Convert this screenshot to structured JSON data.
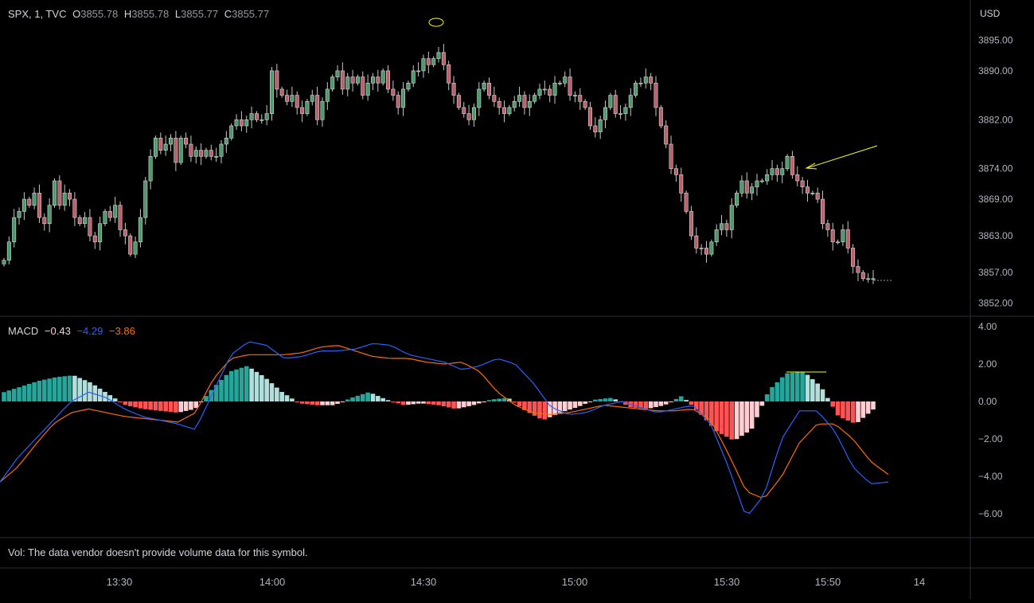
{
  "symbol_line": {
    "title": "SPX, 1, TVC",
    "o_label": "O",
    "o_value": "3855.78",
    "h_label": "H",
    "h_value": "3855.78",
    "l_label": "L",
    "l_value": "3855.77",
    "c_label": "C",
    "c_value": "3855.77"
  },
  "currency": "USD",
  "macd_legend": {
    "name": "MACD",
    "hist": "−0.43",
    "macd": "−4.29",
    "signal": "−3.86"
  },
  "volume_message": "Vol: The data vendor doesn't provide volume data for this symbol.",
  "colors": {
    "background": "#000000",
    "up": "#4c9a6b",
    "down": "#b9606b",
    "macd_line": "#2962ff",
    "signal_line": "#ff6d00",
    "hist_up_strong": "#26a69a",
    "hist_up_weak": "#b2dfdb",
    "hist_down_strong": "#ff5252",
    "hist_down_weak": "#ffcdd2",
    "annotation": "#ffff00"
  },
  "chart_data": [
    {
      "type": "candlestick",
      "price_axis_ticks": [
        "3895.00",
        "3890.00",
        "3882.00",
        "3874.00",
        "3869.00",
        "3863.00",
        "3857.00",
        "3852.00"
      ],
      "time_axis_ticks": [
        "13:30",
        "14:00",
        "14:30",
        "15:00",
        "15:30",
        "15:50",
        "14"
      ],
      "x_start": "13:12",
      "x_end": "15:58",
      "close_series": [
        3859,
        3862,
        3866,
        3867,
        3869,
        3868,
        3870,
        3866,
        3865,
        3868,
        3872,
        3868,
        3870,
        3869,
        3866,
        3865,
        3866,
        3863,
        3862,
        3865,
        3867,
        3866,
        3868,
        3864,
        3863,
        3860,
        3862,
        3866,
        3872,
        3876,
        3879,
        3877,
        3878,
        3879,
        3875,
        3879,
        3878,
        3876,
        3877,
        3876,
        3877,
        3876,
        3876,
        3878,
        3879,
        3881,
        3882,
        3881,
        3882,
        3883,
        3882,
        3882,
        3883,
        3890,
        3887,
        3886,
        3885,
        3886,
        3884,
        3883,
        3885,
        3886,
        3882,
        3885,
        3887,
        3889,
        3890,
        3887,
        3889,
        3888,
        3889,
        3886,
        3888,
        3889,
        3888,
        3890,
        3887,
        3886,
        3884,
        3887,
        3888,
        3890,
        3890,
        3892,
        3891,
        3892,
        3893,
        3891,
        3888,
        3886,
        3884,
        3883,
        3882,
        3884,
        3887,
        3888,
        3886,
        3885,
        3884,
        3883,
        3884,
        3885,
        3886,
        3884,
        3885,
        3886,
        3887,
        3887,
        3886,
        3888,
        3888,
        3889,
        3886,
        3886,
        3885,
        3884,
        3881,
        3880,
        3882,
        3884,
        3886,
        3883,
        3883,
        3884,
        3886,
        3888,
        3888,
        3889,
        3888,
        3884,
        3881,
        3878,
        3874,
        3873,
        3870,
        3867,
        3863,
        3861,
        3861,
        3860,
        3862,
        3864,
        3865,
        3864,
        3868,
        3870,
        3872,
        3870,
        3871,
        3872,
        3872,
        3873,
        3874,
        3873,
        3874,
        3876,
        3873,
        3872,
        3871,
        3870,
        3870,
        3869,
        3865,
        3864,
        3862,
        3862,
        3864,
        3861,
        3858,
        3857,
        3856,
        3856,
        3856
      ],
      "annotations": [
        "yellow circle near session high",
        "yellow arrow pointing at local high near 15:42"
      ]
    },
    {
      "type": "macd",
      "value_axis_ticks": [
        "4.00",
        "2.00",
        "0.00",
        "−2.00",
        "−4.00",
        "−6.00"
      ],
      "macd_line": [
        -4.3,
        -3.0,
        -2.0,
        -1.0,
        0.0,
        0.5,
        0.2,
        -0.4,
        -0.8,
        -1.0,
        -1.2,
        -1.5,
        0.5,
        2.5,
        3.2,
        3.0,
        2.3,
        2.4,
        2.7,
        2.7,
        2.8,
        3.1,
        3.0,
        2.5,
        2.3,
        2.1,
        1.7,
        1.9,
        2.3,
        2.0,
        1.0,
        -0.3,
        -0.7,
        -0.6,
        -0.2,
        0.0,
        -0.3,
        -0.6,
        -0.4,
        -0.2,
        -1.2,
        -3.5,
        -6.2,
        -5.0,
        -2.0,
        -0.5,
        -0.5,
        -1.6,
        -3.5,
        -4.4,
        -4.3
      ],
      "signal_line": [
        -4.3,
        -3.5,
        -2.3,
        -1.2,
        -0.6,
        -0.4,
        -0.6,
        -0.8,
        -0.9,
        -1.0,
        -1.1,
        -0.6,
        1.2,
        2.3,
        2.5,
        2.5,
        2.5,
        2.6,
        2.9,
        3.0,
        2.7,
        2.4,
        2.3,
        2.3,
        2.1,
        2.0,
        2.1,
        1.6,
        0.5,
        -0.2,
        -0.6,
        -0.7,
        -0.6,
        -0.4,
        -0.2,
        -0.3,
        -0.4,
        -0.5,
        -0.5,
        -0.4,
        -1.0,
        -2.8,
        -4.8,
        -5.2,
        -4.0,
        -2.2,
        -1.2,
        -1.2,
        -2.0,
        -3.2,
        -3.9
      ],
      "histogram": [
        0.5,
        0.8,
        1.1,
        1.3,
        1.4,
        1.0,
        0.4,
        -0.2,
        -0.4,
        -0.5,
        -0.6,
        -0.4,
        0.7,
        1.6,
        1.9,
        1.3,
        0.5,
        -0.1,
        -0.2,
        -0.2,
        0.2,
        0.5,
        0.1,
        -0.2,
        -0.1,
        -0.2,
        -0.4,
        -0.2,
        0.1,
        0.2,
        -0.5,
        -1.0,
        -0.6,
        -0.3,
        0.1,
        0.2,
        -0.3,
        -0.4,
        -0.2,
        0.3,
        -0.6,
        -1.6,
        -2.1,
        -1.5,
        0.6,
        1.5,
        1.6,
        0.8,
        -0.8,
        -1.2,
        -0.43
      ]
    }
  ]
}
